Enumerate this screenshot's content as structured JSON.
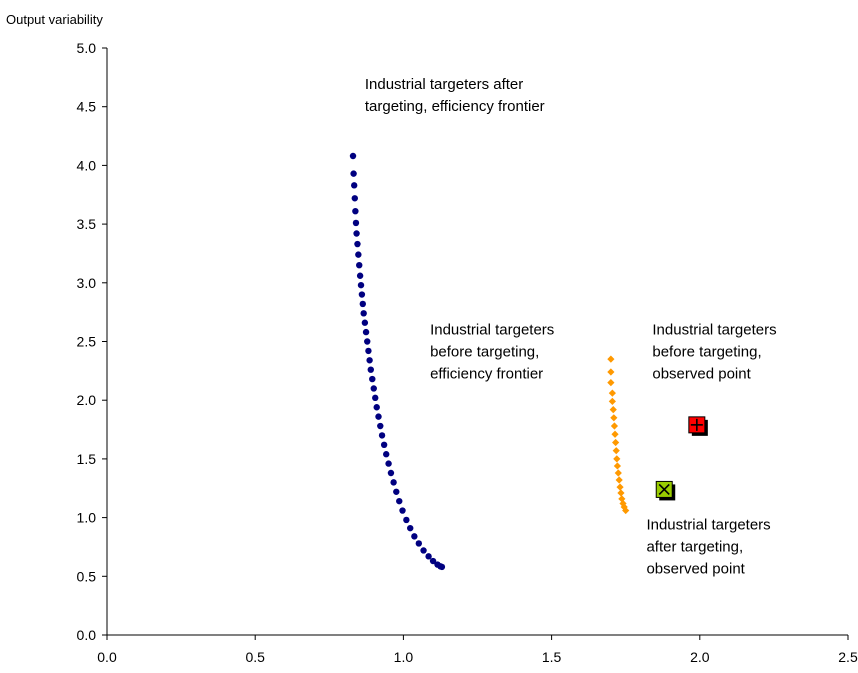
{
  "chart_data": {
    "type": "scatter",
    "title": "",
    "xlabel": "",
    "ylabel": "Output variability",
    "xlim": [
      0.0,
      2.5
    ],
    "ylim": [
      0.0,
      5.0
    ],
    "xticks": [
      "0.0",
      "0.5",
      "1.0",
      "1.5",
      "2.0",
      "2.5"
    ],
    "yticks": [
      "0.0",
      "0.5",
      "1.0",
      "1.5",
      "2.0",
      "2.5",
      "3.0",
      "3.5",
      "4.0",
      "4.5",
      "5.0"
    ],
    "grid": false,
    "series": [
      {
        "marker": "circle",
        "color": "#000080",
        "points": [
          [
            0.83,
            4.08
          ],
          [
            0.832,
            3.93
          ],
          [
            0.834,
            3.83
          ],
          [
            0.836,
            3.72
          ],
          [
            0.838,
            3.61
          ],
          [
            0.84,
            3.51
          ],
          [
            0.842,
            3.42
          ],
          [
            0.845,
            3.33
          ],
          [
            0.848,
            3.24
          ],
          [
            0.851,
            3.15
          ],
          [
            0.854,
            3.06
          ],
          [
            0.857,
            2.98
          ],
          [
            0.86,
            2.9
          ],
          [
            0.863,
            2.82
          ],
          [
            0.866,
            2.74
          ],
          [
            0.87,
            2.66
          ],
          [
            0.874,
            2.58
          ],
          [
            0.878,
            2.5
          ],
          [
            0.882,
            2.42
          ],
          [
            0.886,
            2.34
          ],
          [
            0.89,
            2.26
          ],
          [
            0.895,
            2.18
          ],
          [
            0.9,
            2.1
          ],
          [
            0.905,
            2.02
          ],
          [
            0.91,
            1.94
          ],
          [
            0.916,
            1.86
          ],
          [
            0.922,
            1.78
          ],
          [
            0.928,
            1.7
          ],
          [
            0.935,
            1.62
          ],
          [
            0.942,
            1.54
          ],
          [
            0.95,
            1.46
          ],
          [
            0.958,
            1.38
          ],
          [
            0.967,
            1.3
          ],
          [
            0.976,
            1.22
          ],
          [
            0.986,
            1.14
          ],
          [
            0.997,
            1.06
          ],
          [
            1.01,
            0.98
          ],
          [
            1.023,
            0.91
          ],
          [
            1.037,
            0.84
          ],
          [
            1.052,
            0.78
          ],
          [
            1.068,
            0.72
          ],
          [
            1.085,
            0.67
          ],
          [
            1.1,
            0.63
          ],
          [
            1.115,
            0.6
          ],
          [
            1.125,
            0.585
          ],
          [
            1.13,
            0.58
          ]
        ]
      },
      {
        "marker": "diamond",
        "color": "#FF9900",
        "points": [
          [
            1.7,
            2.35
          ],
          [
            1.7,
            2.24
          ],
          [
            1.7,
            2.15
          ],
          [
            1.705,
            2.06
          ],
          [
            1.705,
            1.99
          ],
          [
            1.708,
            1.92
          ],
          [
            1.71,
            1.85
          ],
          [
            1.712,
            1.78
          ],
          [
            1.714,
            1.71
          ],
          [
            1.716,
            1.64
          ],
          [
            1.718,
            1.57
          ],
          [
            1.72,
            1.5
          ],
          [
            1.722,
            1.44
          ],
          [
            1.725,
            1.38
          ],
          [
            1.728,
            1.32
          ],
          [
            1.731,
            1.26
          ],
          [
            1.734,
            1.21
          ],
          [
            1.737,
            1.16
          ],
          [
            1.741,
            1.12
          ],
          [
            1.745,
            1.09
          ],
          [
            1.75,
            1.06
          ]
        ]
      },
      {
        "marker": "square-plus",
        "color": "#FF0000",
        "points": [
          [
            1.99,
            1.79
          ]
        ]
      },
      {
        "marker": "square-x",
        "color": "#99CC00",
        "points": [
          [
            1.88,
            1.24
          ]
        ]
      }
    ],
    "annotations": [
      {
        "lines": [
          "Industrial targeters after",
          "targeting, efficiency frontier"
        ],
        "x": 0.87,
        "y": 4.65
      },
      {
        "lines": [
          "Industrial targeters",
          "before targeting,",
          "efficiency frontier"
        ],
        "x": 1.09,
        "y": 2.56
      },
      {
        "lines": [
          "Industrial targeters",
          "before targeting,",
          "observed point"
        ],
        "x": 1.84,
        "y": 2.56
      },
      {
        "lines": [
          "Industrial targeters",
          "after targeting,",
          "observed point"
        ],
        "x": 1.82,
        "y": 0.9
      }
    ]
  }
}
